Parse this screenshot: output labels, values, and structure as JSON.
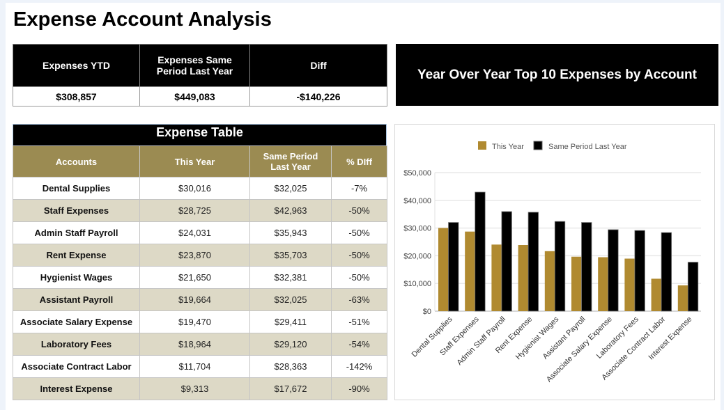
{
  "page": {
    "title": "Expense Account Analysis"
  },
  "summary": {
    "headers": [
      "Expenses YTD",
      "Expenses Same Period Last Year",
      "Diff"
    ],
    "values": [
      "$308,857",
      "$449,083",
      "-$140,226"
    ]
  },
  "chart_panel_title": "Year Over Year Top 10 Expenses by Account",
  "expense_table": {
    "caption": "Expense Table",
    "headers": [
      "Accounts",
      "This Year",
      "Same Period Last Year",
      "% DIff"
    ],
    "rows": [
      {
        "account": "Dental Supplies",
        "this_year": "$30,016",
        "last_year": "$32,025",
        "pct_diff": "-7%"
      },
      {
        "account": "Staff Expenses",
        "this_year": "$28,725",
        "last_year": "$42,963",
        "pct_diff": "-50%"
      },
      {
        "account": "Admin Staff Payroll",
        "this_year": "$24,031",
        "last_year": "$35,943",
        "pct_diff": "-50%"
      },
      {
        "account": "Rent Expense",
        "this_year": "$23,870",
        "last_year": "$35,703",
        "pct_diff": "-50%"
      },
      {
        "account": "Hygienist Wages",
        "this_year": "$21,650",
        "last_year": "$32,381",
        "pct_diff": "-50%"
      },
      {
        "account": "Assistant Payroll",
        "this_year": "$19,664",
        "last_year": "$32,025",
        "pct_diff": "-63%"
      },
      {
        "account": "Associate Salary Expense",
        "this_year": "$19,470",
        "last_year": "$29,411",
        "pct_diff": "-51%"
      },
      {
        "account": "Laboratory Fees",
        "this_year": "$18,964",
        "last_year": "$29,120",
        "pct_diff": "-54%"
      },
      {
        "account": "Associate Contract Labor",
        "this_year": "$11,704",
        "last_year": "$28,363",
        "pct_diff": "-142%"
      },
      {
        "account": "Interest Expense",
        "this_year": "$9,313",
        "last_year": "$17,672",
        "pct_diff": "-90%"
      }
    ]
  },
  "colors": {
    "this_year": "#b08a30",
    "last_year": "#000000",
    "header_gold": "#9b8b52",
    "alt_row": "#ddd9c6"
  },
  "chart_data": {
    "type": "bar",
    "title": "Year Over Year Top 10 Expenses by Account",
    "xlabel": "",
    "ylabel": "",
    "categories": [
      "Dental Supplies",
      "Staff Expenses",
      "Admin Staff Payroll",
      "Rent Expense",
      "Hygienist Wages",
      "Assistant Payroll",
      "Associate Salary Expense",
      "Laboratory Fees",
      "Associate Contract Labor",
      "Interest Expense"
    ],
    "series": [
      {
        "name": "This Year",
        "values": [
          30016,
          28725,
          24031,
          23870,
          21650,
          19664,
          19470,
          18964,
          11704,
          9313
        ]
      },
      {
        "name": "Same Period Last Year",
        "values": [
          32025,
          42963,
          35943,
          35703,
          32381,
          32025,
          29411,
          29120,
          28363,
          17672
        ]
      }
    ],
    "ylim": [
      0,
      50000
    ],
    "yticks": [
      0,
      10000,
      20000,
      30000,
      40000,
      50000
    ],
    "ytick_labels": [
      "$0",
      "$10,000",
      "$20,000",
      "$30,000",
      "$40,000",
      "$50,000"
    ],
    "grid": true,
    "legend": "top-center"
  }
}
